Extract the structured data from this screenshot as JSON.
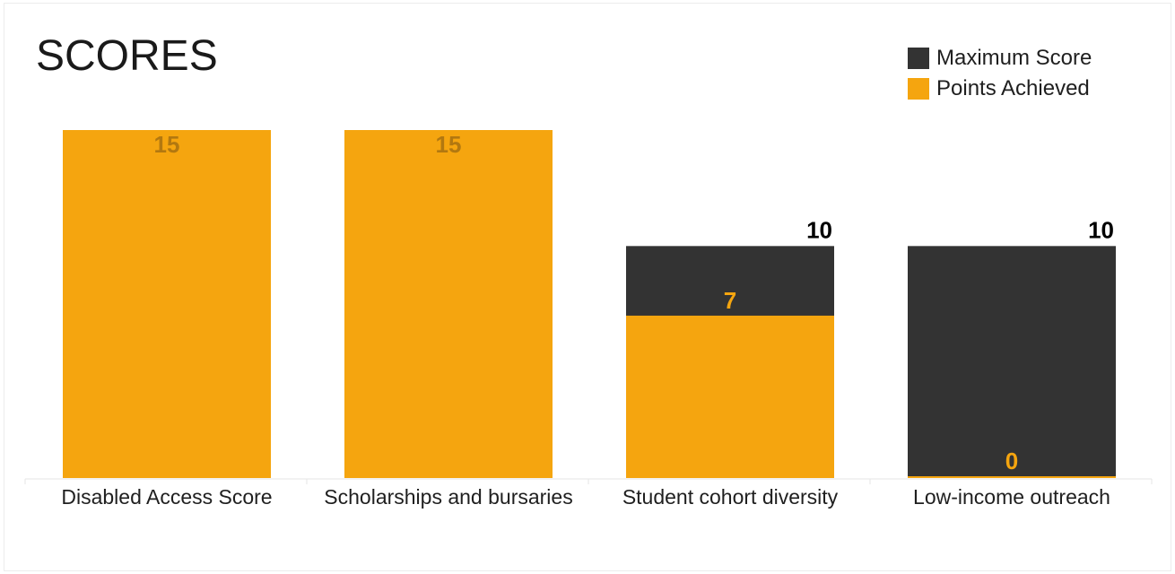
{
  "chart_data": {
    "type": "bar",
    "title": "SCORES",
    "categories": [
      "Disabled Access Score",
      "Scholarships and bursaries",
      "Student cohort diversity",
      "Low-income outreach"
    ],
    "series": [
      {
        "name": "Maximum Score",
        "values": [
          15,
          15,
          10,
          10
        ]
      },
      {
        "name": "Points Achieved",
        "values": [
          15,
          15,
          7,
          0
        ]
      }
    ],
    "ylim": [
      0,
      15
    ],
    "grid": false,
    "legend": "top-right",
    "colors": {
      "max": "#333333",
      "achieved": "#f5a50f",
      "max_label": "#000000",
      "achieved_label_inside": "#b27810",
      "achieved_label_on_dark": "#f5a50f"
    }
  }
}
